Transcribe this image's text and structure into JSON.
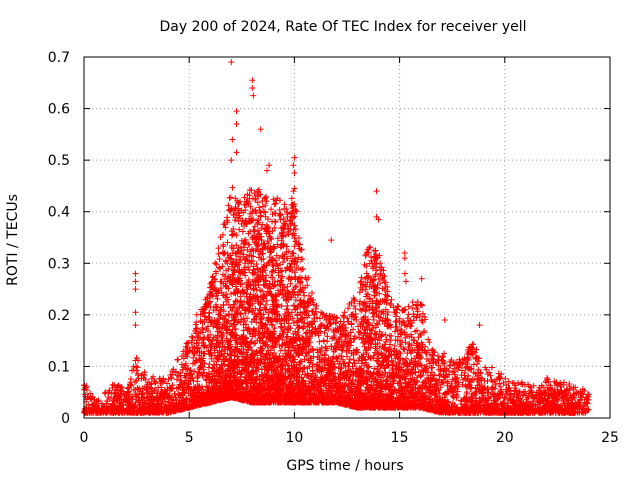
{
  "chart_data": {
    "type": "scatter",
    "title": "Day 200 of 2024, Rate Of TEC Index for receiver yell",
    "xlabel": "GPS time / hours",
    "ylabel": "ROTI / TECUs",
    "xlim": [
      0,
      25
    ],
    "ylim": [
      0,
      0.7
    ],
    "x_ticks": [
      0,
      5,
      10,
      15,
      20,
      25
    ],
    "x_tick_labels": [
      "0",
      "5",
      "10",
      "15",
      "20",
      "25"
    ],
    "y_ticks": [
      0,
      0.1,
      0.2,
      0.3,
      0.4,
      0.5,
      0.6,
      0.7
    ],
    "y_tick_labels": [
      "0",
      "0.1",
      "0.2",
      "0.3",
      "0.4",
      "0.5",
      "0.6",
      "0.7"
    ],
    "grid": true,
    "marker": "+",
    "marker_color": "#ff0000",
    "series": [
      {
        "name": "ROTI",
        "envelope_note": "dense cloud of points; approximate upper envelope (hour, ROTI)",
        "envelope": [
          [
            0.0,
            0.07
          ],
          [
            0.5,
            0.04
          ],
          [
            1.0,
            0.05
          ],
          [
            1.5,
            0.07
          ],
          [
            2.0,
            0.06
          ],
          [
            2.5,
            0.12
          ],
          [
            3.0,
            0.08
          ],
          [
            3.5,
            0.08
          ],
          [
            4.0,
            0.08
          ],
          [
            4.5,
            0.12
          ],
          [
            5.0,
            0.16
          ],
          [
            5.5,
            0.22
          ],
          [
            6.0,
            0.26
          ],
          [
            6.5,
            0.36
          ],
          [
            7.0,
            0.45
          ],
          [
            7.5,
            0.42
          ],
          [
            8.0,
            0.45
          ],
          [
            8.5,
            0.44
          ],
          [
            9.0,
            0.44
          ],
          [
            9.5,
            0.42
          ],
          [
            10.0,
            0.44
          ],
          [
            10.5,
            0.3
          ],
          [
            11.0,
            0.22
          ],
          [
            11.5,
            0.2
          ],
          [
            12.0,
            0.2
          ],
          [
            12.5,
            0.22
          ],
          [
            13.0,
            0.24
          ],
          [
            13.5,
            0.34
          ],
          [
            14.0,
            0.32
          ],
          [
            14.5,
            0.26
          ],
          [
            15.0,
            0.21
          ],
          [
            15.5,
            0.22
          ],
          [
            16.0,
            0.24
          ],
          [
            16.5,
            0.14
          ],
          [
            17.0,
            0.13
          ],
          [
            17.5,
            0.12
          ],
          [
            18.0,
            0.12
          ],
          [
            18.5,
            0.15
          ],
          [
            19.0,
            0.1
          ],
          [
            19.5,
            0.1
          ],
          [
            20.0,
            0.08
          ],
          [
            20.5,
            0.07
          ],
          [
            21.0,
            0.07
          ],
          [
            21.5,
            0.06
          ],
          [
            22.0,
            0.08
          ],
          [
            22.5,
            0.07
          ],
          [
            23.0,
            0.07
          ],
          [
            23.5,
            0.06
          ],
          [
            24.0,
            0.05
          ]
        ],
        "baseline_floor": [
          [
            0.0,
            0.01
          ],
          [
            4.0,
            0.01
          ],
          [
            5.0,
            0.02
          ],
          [
            6.0,
            0.03
          ],
          [
            7.0,
            0.04
          ],
          [
            8.0,
            0.03
          ],
          [
            9.0,
            0.03
          ],
          [
            10.0,
            0.03
          ],
          [
            11.0,
            0.03
          ],
          [
            12.0,
            0.03
          ],
          [
            13.0,
            0.02
          ],
          [
            14.0,
            0.02
          ],
          [
            15.0,
            0.02
          ],
          [
            16.0,
            0.02
          ],
          [
            17.0,
            0.01
          ],
          [
            24.0,
            0.01
          ]
        ],
        "highlight_points": [
          [
            2.45,
            0.28
          ],
          [
            2.45,
            0.265
          ],
          [
            2.45,
            0.25
          ],
          [
            2.45,
            0.205
          ],
          [
            2.45,
            0.18
          ],
          [
            7.0,
            0.69
          ],
          [
            7.25,
            0.595
          ],
          [
            7.25,
            0.57
          ],
          [
            7.05,
            0.54
          ],
          [
            7.25,
            0.515
          ],
          [
            7.0,
            0.5
          ],
          [
            8.0,
            0.655
          ],
          [
            8.0,
            0.64
          ],
          [
            8.05,
            0.625
          ],
          [
            8.4,
            0.56
          ],
          [
            8.8,
            0.49
          ],
          [
            8.7,
            0.48
          ],
          [
            10.0,
            0.505
          ],
          [
            9.95,
            0.49
          ],
          [
            10.0,
            0.475
          ],
          [
            10.0,
            0.445
          ],
          [
            9.95,
            0.44
          ],
          [
            11.75,
            0.345
          ],
          [
            13.9,
            0.44
          ],
          [
            13.9,
            0.39
          ],
          [
            14.0,
            0.385
          ],
          [
            15.25,
            0.32
          ],
          [
            15.25,
            0.31
          ],
          [
            15.25,
            0.28
          ],
          [
            15.3,
            0.265
          ],
          [
            16.05,
            0.27
          ],
          [
            17.15,
            0.19
          ],
          [
            18.8,
            0.18
          ]
        ]
      }
    ]
  }
}
